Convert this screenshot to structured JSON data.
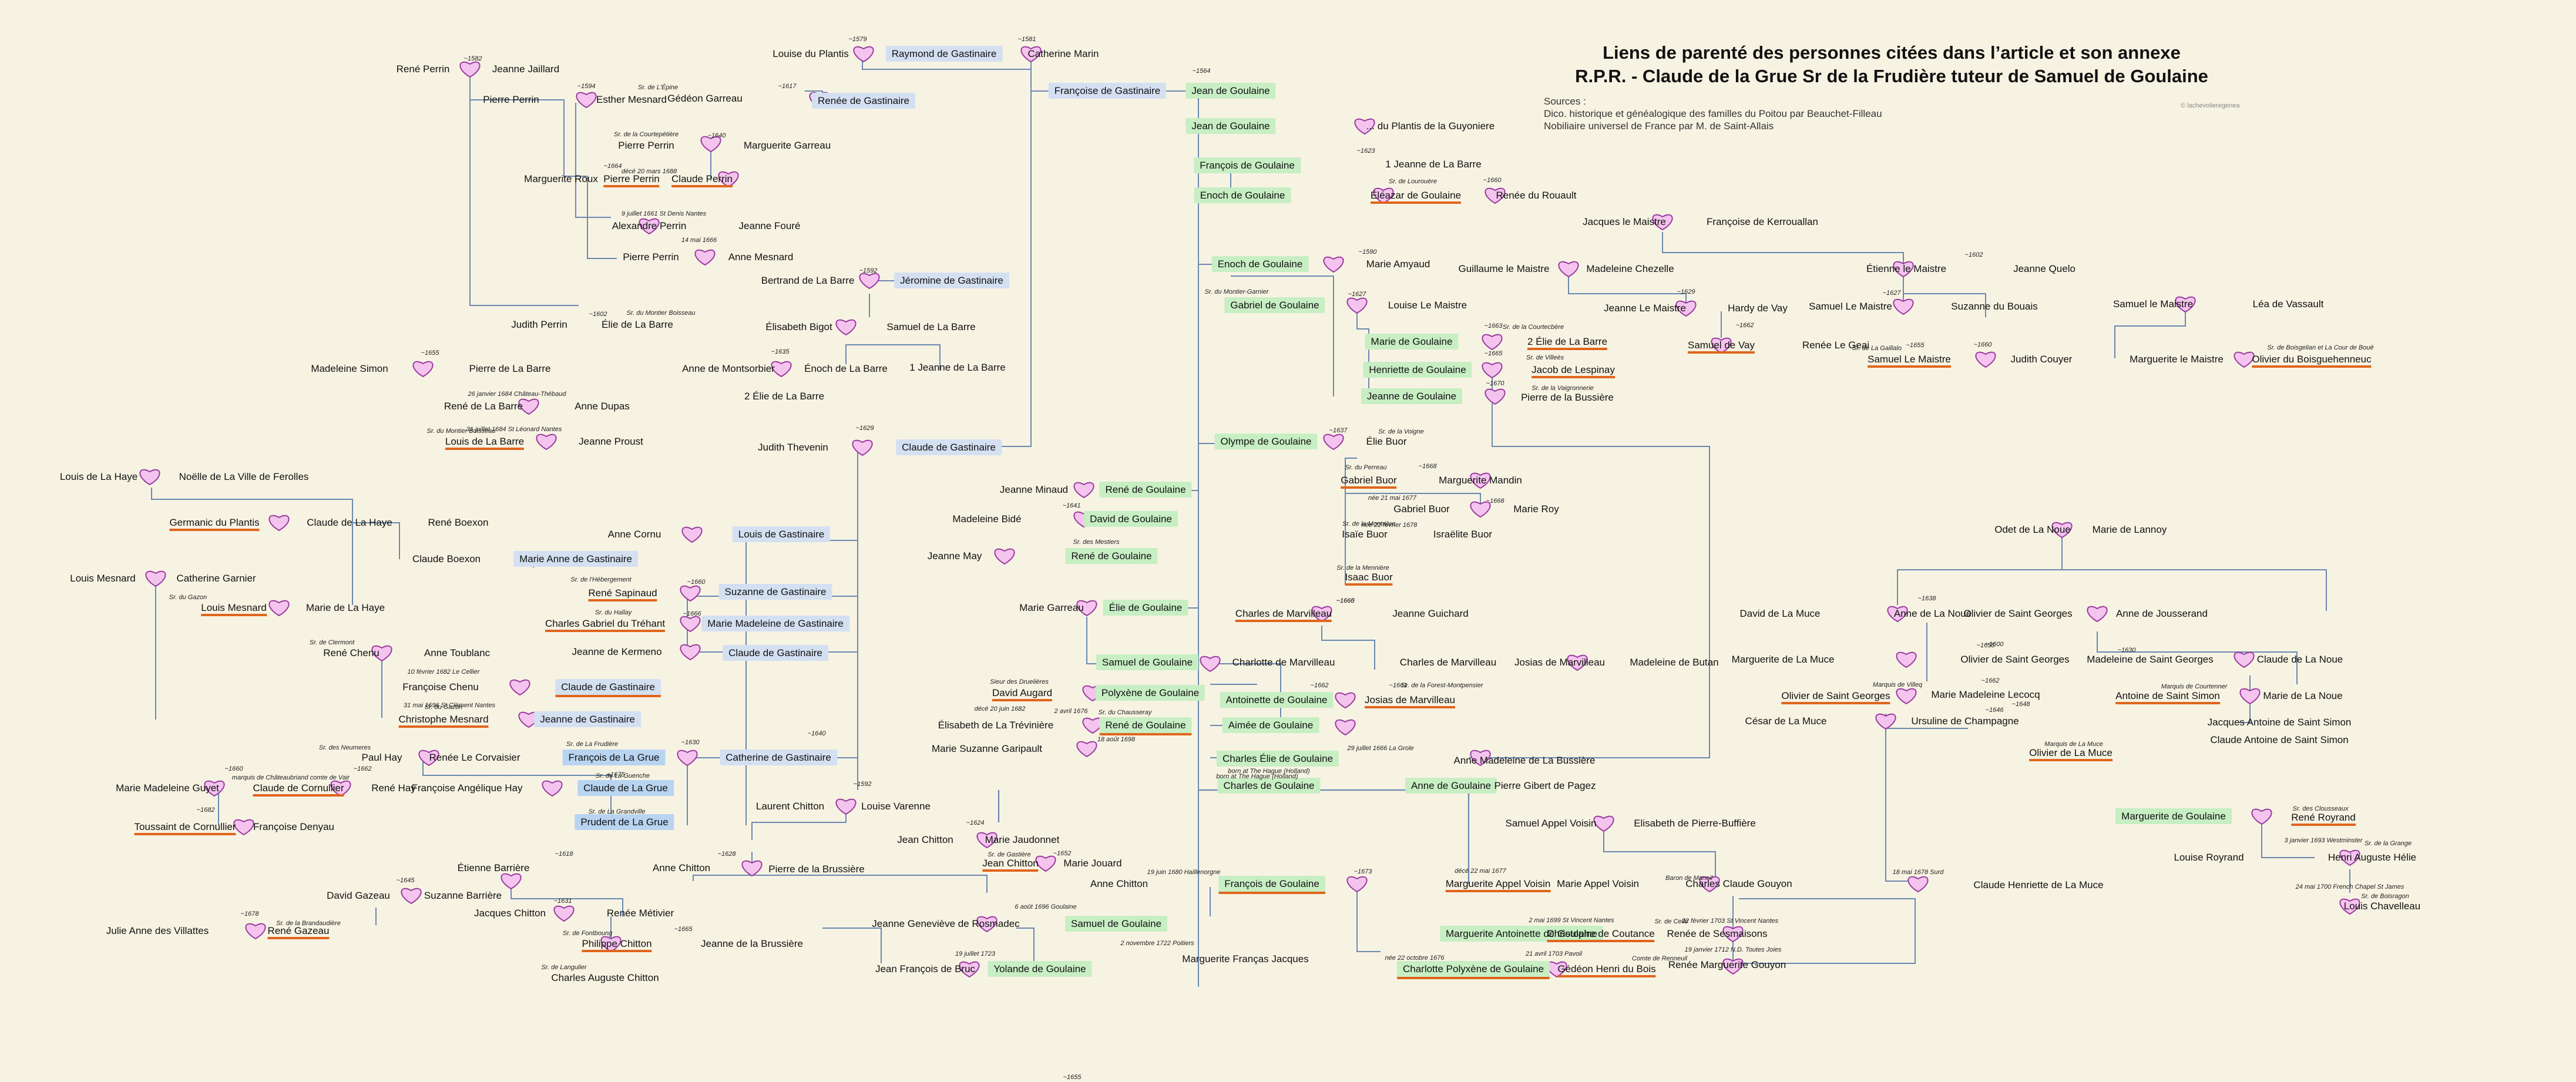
{
  "title": {
    "line1": "Liens de parenté des personnes citées dans l’article et son annexe",
    "line2": "R.P.R. - Claude de la Grue Sr de la Frudière tuteur de Samuel de Goulaine"
  },
  "sources": {
    "heading": "Sources :",
    "line1": "Dico. historique et généalogique des familles du Poitou  par Beauchet-Filleau",
    "line2": "Nobiliaire universel de France par M. de Saint-Allais"
  },
  "credit": "© lachevolieregenea",
  "colors": {
    "background": "#f7f3e3",
    "line": "#6a88b0",
    "heart_fill": "#f4c4ee",
    "heart_stroke": "#9a3aa0",
    "goulaine_box": "#c8eec4",
    "gastinaire_box": "#d4e0f2",
    "grue_box": "#b8d4f0",
    "underline": "#e0651c",
    "number_red": "#d01010"
  },
  "persons": [
    {
      "text": "René Perrin"
    },
    {
      "text": "Jeanne Jaillard"
    },
    {
      "text": "Pierre Perrin"
    },
    {
      "text": "Esther Mesnard"
    },
    {
      "text": "Pierre Perrin"
    },
    {
      "text": "Marguerite Garreau"
    },
    {
      "text": "Marguerite Roux"
    },
    {
      "text": "Pierre Perrin"
    },
    {
      "text": "Claude Perrin"
    },
    {
      "text": "Alexandre Perrin"
    },
    {
      "text": "Jeanne Fouré"
    },
    {
      "text": "Pierre Perrin"
    },
    {
      "text": "Anne Mesnard"
    },
    {
      "text": "Judith Perrin"
    },
    {
      "text": "Élie de La Barre"
    },
    {
      "text": "Louise du Plantis"
    },
    {
      "text": "Raymond de Gastinaire"
    },
    {
      "text": "Catherine Marin"
    },
    {
      "text": "Gédéon Garreau"
    },
    {
      "text": "Renée de Gastinaire"
    },
    {
      "text": "Françoise de Gastinaire"
    },
    {
      "text": "Jean de Goulaine"
    },
    {
      "text": "Jean de Goulaine"
    },
    {
      "text": "... du Plantis de la Guyoniere"
    },
    {
      "text": "François de Goulaine"
    },
    {
      "text": "1 Jeanne de La Barre"
    },
    {
      "text": "Enoch de Goulaine"
    },
    {
      "text": "Éléazar  de Goulaine"
    },
    {
      "text": "Renée du Rouault"
    },
    {
      "text": "Bertrand de La Barre"
    },
    {
      "text": "Jéromine de Gastinaire"
    },
    {
      "text": "Élisabeth Bigot"
    },
    {
      "text": "Samuel de La Barre"
    },
    {
      "text": "Anne de Montsorbier"
    },
    {
      "text": "Énoch de La Barre"
    },
    {
      "text": "1 Jeanne de La Barre"
    },
    {
      "text": "2 Élie de La Barre"
    },
    {
      "text": "Madeleine Simon"
    },
    {
      "text": "Pierre de La Barre"
    },
    {
      "text": "René de La Barre"
    },
    {
      "text": "Anne Dupas"
    },
    {
      "text": "Louis de La Barre"
    },
    {
      "text": "Jeanne Proust"
    },
    {
      "text": "Judith Thevenin"
    },
    {
      "text": "Claude de Gastinaire"
    },
    {
      "text": "Louis de La Haye"
    },
    {
      "text": "Noëlle de La Ville de Ferolles"
    },
    {
      "text": "Germanic du Plantis"
    },
    {
      "text": "Claude de La Haye"
    },
    {
      "text": "René Boexon"
    },
    {
      "text": "Claude Boexon"
    },
    {
      "text": "Marie Anne de Gastinaire"
    },
    {
      "text": "Anne Cornu"
    },
    {
      "text": "Louis de Gastinaire"
    },
    {
      "text": "Louis Mesnard"
    },
    {
      "text": "Catherine Garnier"
    },
    {
      "text": "Louis Mesnard"
    },
    {
      "text": "Marie de La Haye"
    },
    {
      "text": "René Sapinaud"
    },
    {
      "text": "Suzanne de Gastinaire"
    },
    {
      "text": "Charles Gabriel du Tréhant"
    },
    {
      "text": "Marie Madeleine de Gastinaire"
    },
    {
      "text": "Jeanne de Kermeno"
    },
    {
      "text": "Claude de Gastinaire"
    },
    {
      "text": "René Chenu"
    },
    {
      "text": "Anne Toublanc"
    },
    {
      "text": "Françoise Chenu"
    },
    {
      "text": "Claude de Gastinaire"
    },
    {
      "text": "Christophe Mesnard"
    },
    {
      "text": "Jeanne de Gastinaire"
    },
    {
      "text": "Paul Hay"
    },
    {
      "text": "Renée Le Corvaisier"
    },
    {
      "text": "François de La Grue"
    },
    {
      "text": "Catherine de Gastinaire"
    },
    {
      "text": "Marie Madeleine Guyet"
    },
    {
      "text": "Claude de Cornullier"
    },
    {
      "text": "René Hay"
    },
    {
      "text": "Françoise Angélique Hay"
    },
    {
      "text": "Claude de La Grue"
    },
    {
      "text": "Toussaint de Cornullier"
    },
    {
      "text": "Françoise Denyau"
    },
    {
      "text": "Prudent de La Grue"
    },
    {
      "text": "Enoch de Goulaine"
    },
    {
      "text": "Marie Amyaud"
    },
    {
      "text": "Gabriel de Goulaine"
    },
    {
      "text": "Louise Le Maistre"
    },
    {
      "text": "Marie de Goulaine"
    },
    {
      "text": "2 Élie de La Barre"
    },
    {
      "text": "Henriette de Goulaine"
    },
    {
      "text": "Jacob de Lespinay"
    },
    {
      "text": "Jeanne de Goulaine"
    },
    {
      "text": "Pierre de la Bussière"
    },
    {
      "text": "Jacques le Maistre"
    },
    {
      "text": "Françoise de Kerrouallan"
    },
    {
      "text": "Guillaume le Maistre"
    },
    {
      "text": "Madeleine Chezelle"
    },
    {
      "text": "Étienne le Maistre"
    },
    {
      "text": "Jeanne Quelo"
    },
    {
      "text": "Jeanne Le Maistre"
    },
    {
      "text": "Hardy de Vay"
    },
    {
      "text": "Samuel Le Maistre"
    },
    {
      "text": "Suzanne du Bouais"
    },
    {
      "text": "Samuel le Maistre"
    },
    {
      "text": "Léa de Vassault"
    },
    {
      "text": "Samuel de Vay"
    },
    {
      "text": "Renée Le Geai"
    },
    {
      "text": "Samuel Le Maistre"
    },
    {
      "text": "Judith Couyer"
    },
    {
      "text": "Marguerite le Maistre"
    },
    {
      "text": "Olivier du Boisguehenneuc"
    },
    {
      "text": "Olympe de Goulaine"
    },
    {
      "text": "Élie Buor"
    },
    {
      "text": "Gabriel Buor"
    },
    {
      "text": "Marguerite Mandin"
    },
    {
      "text": "Gabriel Buor"
    },
    {
      "text": "Marie Roy"
    },
    {
      "text": "Isaïe Buor"
    },
    {
      "text": "Israëlite Buor"
    },
    {
      "text": "Isaac Buor"
    },
    {
      "text": "Jeanne Minaud"
    },
    {
      "text": "René de Goulaine"
    },
    {
      "text": "Madeleine Bidé"
    },
    {
      "text": "David de Goulaine"
    },
    {
      "text": "Jeanne May"
    },
    {
      "text": "René de Goulaine"
    },
    {
      "text": "Marie Garreau"
    },
    {
      "text": "Élie de Goulaine"
    },
    {
      "text": "Charles de Marvilleau"
    },
    {
      "text": "Jeanne Guichard"
    },
    {
      "text": "Samuel de Goulaine"
    },
    {
      "text": "Charlotte de Marvilleau"
    },
    {
      "text": "Charles de Marvilleau"
    },
    {
      "text": "Josias de Marvilleau"
    },
    {
      "text": "Madeleine de Butan"
    },
    {
      "text": "David Augard"
    },
    {
      "text": "Polyxène de Goulaine"
    },
    {
      "text": "Antoinette de Goulaine"
    },
    {
      "text": "Josias de Marvilleau"
    },
    {
      "text": "Élisabeth de La Trévinière"
    },
    {
      "text": "René de Goulaine"
    },
    {
      "text": "Aimée de Goulaine"
    },
    {
      "text": "Marie Suzanne Garipault"
    },
    {
      "text": "Charles Élie de Goulaine"
    },
    {
      "text": "Anne Madeleine de La Bussière"
    },
    {
      "text": "Charles de Goulaine"
    },
    {
      "text": "Anne de Goulaine"
    },
    {
      "text": "Pierre Gibert de Pagez"
    },
    {
      "text": "Odet de La Noue"
    },
    {
      "text": "Marie de Lannoy"
    },
    {
      "text": "David de La Muce"
    },
    {
      "text": "Anne de La Noue"
    },
    {
      "text": "Olivier de Saint Georges"
    },
    {
      "text": "Anne de Jousserand"
    },
    {
      "text": "Marguerite de La Muce"
    },
    {
      "text": "Olivier de Saint Georges"
    },
    {
      "text": "Madeleine de Saint Georges"
    },
    {
      "text": "Claude de La Noue"
    },
    {
      "text": "Olivier de Saint Georges"
    },
    {
      "text": "Marie Madeleine Lecocq"
    },
    {
      "text": "Antoine de Saint Simon"
    },
    {
      "text": "Marie de La Noue"
    },
    {
      "text": "César de La Muce"
    },
    {
      "text": "Ursuline de Champagne"
    },
    {
      "text": "Jacques Antoine de Saint Simon"
    },
    {
      "text": "Claude Antoine de Saint Simon"
    },
    {
      "text": "Olivier de La Muce"
    },
    {
      "text": "Laurent Chitton"
    },
    {
      "text": "Louise Varenne"
    },
    {
      "text": "Jean Chitton"
    },
    {
      "text": "Marie Jaudonnet"
    },
    {
      "text": "Jean Chitton"
    },
    {
      "text": "Marie Jouard"
    },
    {
      "text": "Étienne Barrière"
    },
    {
      "text": "Anne Chitton"
    },
    {
      "text": "Pierre de la Brussière"
    },
    {
      "text": "Anne Chitton"
    },
    {
      "text": "David Gazeau"
    },
    {
      "text": "Suzanne Barrière"
    },
    {
      "text": "Julie Anne des Villattes"
    },
    {
      "text": "René Gazeau"
    },
    {
      "text": "Jacques Chitton"
    },
    {
      "text": "Renée Métivier"
    },
    {
      "text": "Philippe Chitton"
    },
    {
      "text": "Jeanne de la Brussière"
    },
    {
      "text": "Charles Auguste Chitton"
    },
    {
      "text": "Jeanne Geneviève de Rosmadec"
    },
    {
      "text": "Samuel de Goulaine"
    },
    {
      "text": "Jean François de Bruc"
    },
    {
      "text": "Yolande de Goulaine"
    },
    {
      "text": "Marguerite Franças Jacques"
    },
    {
      "text": "François de Goulaine"
    },
    {
      "text": "Marguerite Appel Voisin"
    },
    {
      "text": "Samuel Appel Voisin"
    },
    {
      "text": "Elisabeth de Pierre-Buffière"
    },
    {
      "text": "Marie Appel Voisin"
    },
    {
      "text": "Charles Claude Gouyon"
    },
    {
      "text": "Claude Henriette de La Muce"
    },
    {
      "text": "Marguerite Antoinette de Goulaine"
    },
    {
      "text": "Christophe de Coutance"
    },
    {
      "text": "Renée de Sesmaisons"
    },
    {
      "text": "Charlotte Polyxène de Goulaine"
    },
    {
      "text": "Gédéon Henri du Bois"
    },
    {
      "text": "Renée Marguerite Gouyon"
    },
    {
      "text": "Marguerite de Goulaine"
    },
    {
      "text": "René Royrand"
    },
    {
      "text": "Louise Royrand"
    },
    {
      "text": "Henri Auguste Hélie"
    },
    {
      "text": "Louis Chavelleau"
    }
  ],
  "annotations": [
    "~1582",
    "~1594",
    "~1617",
    "Sr. de L'Épine",
    "Sr. de la Courtepétière",
    "~1640",
    "~1664",
    "décé 20 mars 1688",
    "9 juillet 1661 St Denis Nantes",
    "14 mai 1666",
    "~1579",
    "~1581",
    "~1564",
    "~1623",
    "Sr. de Lourouère",
    "~1660",
    "~1592",
    "~1602",
    "Sr. du Montier Boisseau",
    "~1635",
    "~1655",
    "26 janvier 1684 Château-Thébaud",
    "31 juillet 1684 St Léonard Nantes",
    "Sr. du Montier Boisseau",
    "~1629",
    "Sr. du Montier-Garnier",
    "~1590",
    "~1627",
    "Sr. de la Courtecbère",
    "~1663",
    "~1665",
    "Sr. de Villeès",
    "~1670",
    "Sr. de la Vaigronnerie",
    "~1602",
    "~1629",
    "~1627",
    "~1662",
    "Sr. de La Gaillalo",
    "Sr. de Boisgelian et La Cour de Bouë",
    "~1660",
    "~1655",
    "~1637",
    "Sr. de la Voigne",
    "Sr. du Perreau",
    "~1668",
    "née 21 mai 1677",
    "~1668",
    "née 22 février 1678",
    "Sr. de la Montrière",
    "Sr. de la Mennière",
    "~1662",
    "~1655",
    "~1641",
    "Sr. des Mestiers",
    "~1665",
    "~1660",
    "Sr. du Gazon",
    "Sr. de l'Hébergement",
    "Sr. du Hallay",
    "~1666",
    "~1660",
    "Sr. de Clermont",
    "10 février 1682 Le Cellier",
    "31 mai 1696 St Clément Nantes",
    "Sr. du Gazon",
    "Sr. des Neumeres",
    "Sr. de La Frudière",
    "~1630",
    "~1660",
    "marquis de Châteaubriand comte de Vair",
    "~1662",
    "Sr. de La Guenche",
    "~1675",
    "~1682",
    "Sr. de La Grandville",
    "~1640",
    "~1661",
    "Sr. de la Forest-Montpensier",
    "Sieur des Druelières",
    "décé 20 juin 1682",
    "2 avril 1676",
    "Sr. du Chausseray",
    "18 août 1698",
    "29 juillet 1666 La Grole",
    "born at The Hague (Holland)",
    "born at The Hague (Holland)",
    "~1638",
    "~1655",
    "~1662",
    "Marquis de Villeq",
    "~1646",
    "Marquis de Courtenner",
    "~1630",
    "~1648",
    "~1624",
    "Sr. de Gastière",
    "~1652",
    "~1618",
    "~1628",
    "~1645",
    "~1678",
    "Sr. de la Brandaudière",
    "~1631",
    "Sr. de Fontboung",
    "~1665",
    "Sr. de Langulier",
    "19 juin 1680 Haillenorgne",
    "6 août 1696 Goulaine",
    "19 juillet 1723",
    "2 novembre 1722 Poitiers",
    "~1673",
    "décé 22 mai 1677",
    "2 mai 1699 St Vincent Nantes",
    "Sr. de Cellé",
    "22 février 1703 St Vincent Nantes",
    "Baron de Maneil",
    "18 mai 1678 Surd",
    "née 22 octobre 1676",
    "21 avril 1703 Pavoil",
    "Comte de Renneuil",
    "19 janvier 1712 N.D. Toutes Joies",
    "Sr. des Clousseaux",
    "Sr. de la Grange",
    "3 janvier 1693 Westminster",
    "24 mai 1700 French Chapel St James",
    "Sr. de Boisragon",
    "Marquis de La Muce",
    "~1600",
    "~1592"
  ]
}
